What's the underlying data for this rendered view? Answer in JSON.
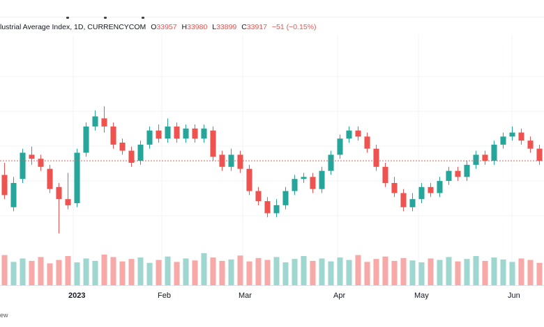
{
  "legend": {
    "title": "lustrial Average Index, 1D, CURRENCYCOM",
    "o_label": "O",
    "o_value": "33957",
    "h_label": "H",
    "h_value": "33980",
    "l_label": "L",
    "l_value": "33899",
    "c_label": "C",
    "c_value": "33917",
    "change": "−51 (−0.15%)"
  },
  "footer_text": "ew",
  "colors": {
    "up": "#26a69a",
    "down": "#ef5350",
    "vol_up": "#9fd6cf",
    "vol_down": "#f7a9a7",
    "last_price_line": "#ef5350"
  },
  "chart_data": {
    "type": "candlestick",
    "x_tick_labels": [
      "2023",
      "Feb",
      "Mar",
      "Apr",
      "May",
      "Jun"
    ],
    "last_price_line": "dotted",
    "candles_ohlc": [
      [
        0.34,
        0.24,
        0.22,
        0.4
      ],
      [
        0.18,
        0.3,
        0.16,
        0.33
      ],
      [
        0.32,
        0.45,
        0.3,
        0.47
      ],
      [
        0.44,
        0.42,
        0.39,
        0.48
      ],
      [
        0.42,
        0.38,
        0.36,
        0.44
      ],
      [
        0.37,
        0.27,
        0.25,
        0.39
      ],
      [
        0.28,
        0.22,
        0.05,
        0.3
      ],
      [
        0.22,
        0.19,
        0.17,
        0.35
      ],
      [
        0.2,
        0.45,
        0.18,
        0.47
      ],
      [
        0.45,
        0.58,
        0.43,
        0.6
      ],
      [
        0.58,
        0.63,
        0.56,
        0.66
      ],
      [
        0.62,
        0.58,
        0.55,
        0.68
      ],
      [
        0.58,
        0.49,
        0.47,
        0.6
      ],
      [
        0.5,
        0.46,
        0.44,
        0.52
      ],
      [
        0.46,
        0.4,
        0.38,
        0.48
      ],
      [
        0.41,
        0.49,
        0.39,
        0.51
      ],
      [
        0.49,
        0.56,
        0.47,
        0.58
      ],
      [
        0.56,
        0.52,
        0.5,
        0.59
      ],
      [
        0.52,
        0.58,
        0.5,
        0.62
      ],
      [
        0.58,
        0.52,
        0.5,
        0.6
      ],
      [
        0.52,
        0.57,
        0.5,
        0.59
      ],
      [
        0.57,
        0.52,
        0.5,
        0.59
      ],
      [
        0.52,
        0.57,
        0.5,
        0.59
      ],
      [
        0.56,
        0.43,
        0.41,
        0.58
      ],
      [
        0.44,
        0.38,
        0.36,
        0.46
      ],
      [
        0.38,
        0.44,
        0.36,
        0.47
      ],
      [
        0.44,
        0.37,
        0.35,
        0.46
      ],
      [
        0.37,
        0.26,
        0.24,
        0.39
      ],
      [
        0.26,
        0.21,
        0.19,
        0.28
      ],
      [
        0.21,
        0.15,
        0.13,
        0.23
      ],
      [
        0.15,
        0.19,
        0.13,
        0.22
      ],
      [
        0.19,
        0.26,
        0.17,
        0.28
      ],
      [
        0.26,
        0.32,
        0.24,
        0.34
      ],
      [
        0.32,
        0.33,
        0.3,
        0.35
      ],
      [
        0.33,
        0.27,
        0.25,
        0.35
      ],
      [
        0.27,
        0.36,
        0.25,
        0.38
      ],
      [
        0.36,
        0.44,
        0.34,
        0.46
      ],
      [
        0.44,
        0.52,
        0.42,
        0.54
      ],
      [
        0.52,
        0.56,
        0.5,
        0.58
      ],
      [
        0.56,
        0.53,
        0.51,
        0.58
      ],
      [
        0.53,
        0.47,
        0.45,
        0.55
      ],
      [
        0.47,
        0.38,
        0.36,
        0.49
      ],
      [
        0.38,
        0.3,
        0.28,
        0.4
      ],
      [
        0.3,
        0.25,
        0.23,
        0.33
      ],
      [
        0.25,
        0.18,
        0.16,
        0.27
      ],
      [
        0.18,
        0.22,
        0.16,
        0.25
      ],
      [
        0.22,
        0.28,
        0.2,
        0.3
      ],
      [
        0.28,
        0.25,
        0.23,
        0.3
      ],
      [
        0.25,
        0.31,
        0.23,
        0.33
      ],
      [
        0.31,
        0.36,
        0.29,
        0.38
      ],
      [
        0.36,
        0.33,
        0.31,
        0.38
      ],
      [
        0.33,
        0.39,
        0.31,
        0.41
      ],
      [
        0.39,
        0.44,
        0.37,
        0.46
      ],
      [
        0.44,
        0.41,
        0.39,
        0.46
      ],
      [
        0.41,
        0.49,
        0.39,
        0.51
      ],
      [
        0.49,
        0.53,
        0.47,
        0.55
      ],
      [
        0.53,
        0.55,
        0.51,
        0.58
      ],
      [
        0.55,
        0.51,
        0.49,
        0.57
      ],
      [
        0.51,
        0.47,
        0.45,
        0.53
      ],
      [
        0.47,
        0.41,
        0.39,
        0.49
      ]
    ],
    "volumes": [
      0.62,
      0.48,
      0.55,
      0.5,
      0.58,
      0.45,
      0.52,
      0.6,
      0.47,
      0.55,
      0.5,
      0.63,
      0.58,
      0.49,
      0.54,
      0.57,
      0.46,
      0.52,
      0.59,
      0.48,
      0.55,
      0.51,
      0.66,
      0.57,
      0.5,
      0.53,
      0.61,
      0.49,
      0.56,
      0.52,
      0.58,
      0.47,
      0.54,
      0.6,
      0.5,
      0.55,
      0.49,
      0.57,
      0.52,
      0.62,
      0.48,
      0.54,
      0.59,
      0.5,
      0.56,
      0.51,
      0.47,
      0.55,
      0.52,
      0.58,
      0.49,
      0.54,
      0.6,
      0.5,
      0.57,
      0.53,
      0.48,
      0.55,
      0.52,
      0.46
    ]
  }
}
